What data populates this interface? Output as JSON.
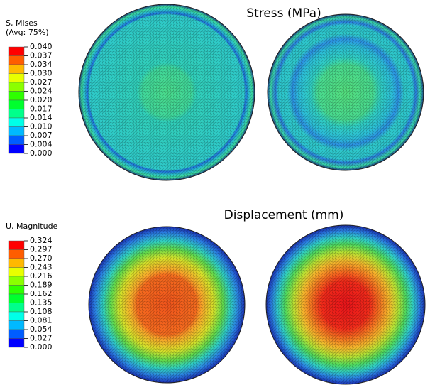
{
  "panels": [
    {
      "title": "Stress (MPa)",
      "legend": {
        "title": [
          "S, Mises",
          "(Avg: 75%)"
        ],
        "labels": [
          "0.040",
          "0.037",
          "0.034",
          "0.030",
          "0.027",
          "0.024",
          "0.020",
          "0.017",
          "0.014",
          "0.010",
          "0.007",
          "0.004",
          "0.000"
        ],
        "colors": [
          "#ff0000",
          "#ff5d00",
          "#ffb900",
          "#e8ff00",
          "#8bff00",
          "#2eff00",
          "#00ff2e",
          "#00ff8b",
          "#00ffe8",
          "#00b9ff",
          "#005dff",
          "#0000ff"
        ]
      }
    },
    {
      "title": "Displacement (mm)",
      "legend": {
        "title": [
          "U, Magnitude"
        ],
        "labels": [
          "0.324",
          "0.297",
          "0.270",
          "0.243",
          "0.216",
          "0.189",
          "0.162",
          "0.135",
          "0.108",
          "0.081",
          "0.054",
          "0.027",
          "0.000"
        ],
        "colors": [
          "#ff0000",
          "#ff5d00",
          "#ffb900",
          "#e8ff00",
          "#8bff00",
          "#2eff00",
          "#00ff2e",
          "#00ff8b",
          "#00ffe8",
          "#00b9ff",
          "#005dff",
          "#0000ff"
        ]
      }
    }
  ]
}
